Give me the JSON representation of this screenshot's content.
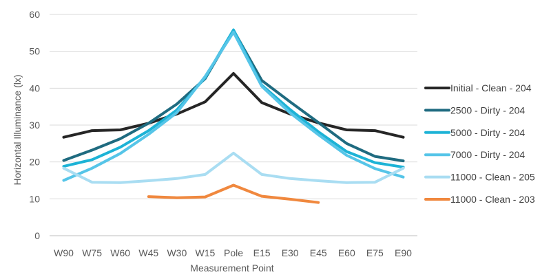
{
  "chart_data": {
    "type": "line",
    "title": "",
    "xlabel": "Measurement Point",
    "ylabel": "Horizontal Illuminance (lx)",
    "categories": [
      "W90",
      "W75",
      "W60",
      "W45",
      "W30",
      "W15",
      "Pole",
      "E15",
      "E30",
      "E45",
      "E60",
      "E75",
      "E90"
    ],
    "ylim": [
      0,
      60
    ],
    "yticks": [
      0,
      10,
      20,
      30,
      40,
      50,
      60
    ],
    "grid": "horizontal",
    "legend_position": "right",
    "series": [
      {
        "name": "Initial - Clean - 204",
        "color": "#262626",
        "values": [
          26.7,
          28.5,
          28.7,
          30.5,
          33.0,
          36.3,
          44.0,
          36.1,
          33.0,
          30.6,
          28.7,
          28.5,
          26.7
        ]
      },
      {
        "name": "2500 - Dirty - 204",
        "color": "#1f6b80",
        "values": [
          20.4,
          23.2,
          26.3,
          30.5,
          35.7,
          42.6,
          55.7,
          42.1,
          36.3,
          30.7,
          25.0,
          21.5,
          20.3
        ]
      },
      {
        "name": "5000 - Dirty - 204",
        "color": "#1db3d6",
        "values": [
          18.8,
          20.6,
          24.0,
          28.5,
          34.1,
          42.9,
          55.8,
          40.8,
          34.2,
          28.2,
          22.8,
          19.8,
          18.6
        ]
      },
      {
        "name": "7000 - Dirty - 204",
        "color": "#56c5e8",
        "values": [
          15.0,
          18.3,
          22.3,
          27.5,
          33.4,
          43.2,
          55.2,
          40.5,
          33.3,
          27.4,
          21.8,
          18.2,
          15.9
        ]
      },
      {
        "name": "11000 - Clean - 205",
        "color": "#a9ddf2",
        "values": [
          18.3,
          14.5,
          14.4,
          14.9,
          15.5,
          16.6,
          22.4,
          16.6,
          15.5,
          14.9,
          14.4,
          14.5,
          18.3
        ]
      },
      {
        "name": "11000 - Clean - 203",
        "color": "#f0883e",
        "values": [
          null,
          null,
          null,
          10.6,
          10.3,
          10.5,
          13.7,
          10.7,
          9.9,
          9.0,
          null,
          null,
          null
        ]
      }
    ]
  }
}
